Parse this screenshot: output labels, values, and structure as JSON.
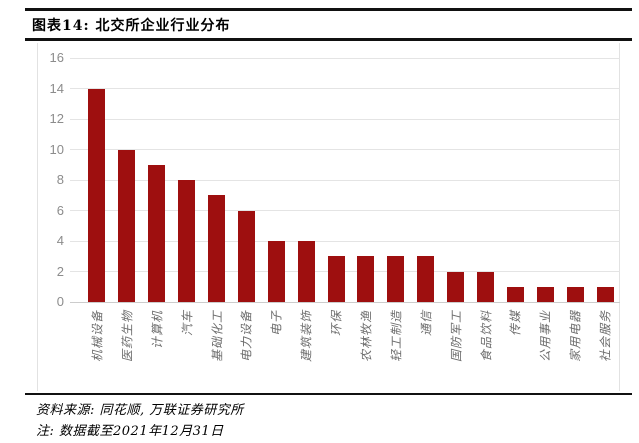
{
  "footer": {
    "source": "资料来源: 同花顺, 万联证券研究所",
    "note": "注: 数据截至2021年12月31日"
  },
  "chart_data": {
    "type": "bar",
    "title": "图表14:  北交所企业行业分布",
    "categories": [
      "机械设备",
      "医药生物",
      "计算机",
      "汽车",
      "基础化工",
      "电力设备",
      "电子",
      "建筑装饰",
      "环保",
      "农林牧渔",
      "轻工制造",
      "通信",
      "国防军工",
      "食品饮料",
      "传媒",
      "公用事业",
      "家用电器",
      "社会服务"
    ],
    "values": [
      14,
      10,
      9,
      8,
      7,
      6,
      4,
      4,
      3,
      3,
      3,
      3,
      2,
      2,
      1,
      1,
      1,
      1
    ],
    "xlabel": "",
    "ylabel": "",
    "ylim": [
      0,
      16
    ],
    "yticks": [
      0,
      2,
      4,
      6,
      8,
      10,
      12,
      14,
      16
    ],
    "grid": "horizontal",
    "legend": "none",
    "bar_color": "#9E0F0F",
    "gridline_color": "#e4e4e4",
    "zero_line_color": "#cccccc",
    "tick_label_color": "#8c8c8c",
    "x_label_color": "#6e6e6e"
  }
}
